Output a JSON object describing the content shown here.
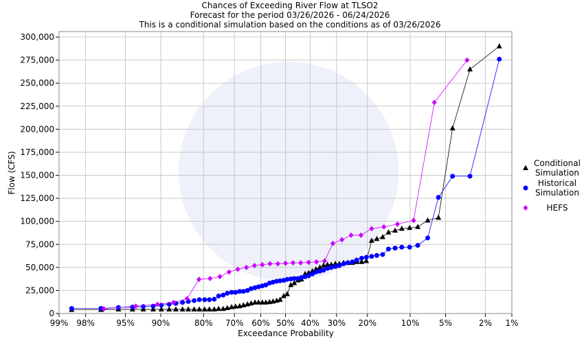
{
  "chart_data": {
    "type": "exceedance",
    "title": "Chances of Exceeding River Flow at TLSO2",
    "subtitle": "Forecast for the period 03/26/2026 - 06/24/2026",
    "subtitle2": "This is a conditional simulation based on the conditions as of 03/26/2026",
    "x_label": "Exceedance Probability",
    "y_label": "Flow (CFS)",
    "xscale": "probability",
    "grid": true,
    "legend": "right",
    "xlim": [
      99,
      1
    ],
    "ylim": [
      0,
      306000
    ],
    "xticks": [
      {
        "value": 99,
        "label": "99%"
      },
      {
        "value": 98,
        "label": "98%"
      },
      {
        "value": 95,
        "label": "95%"
      },
      {
        "value": 90,
        "label": "90%"
      },
      {
        "value": 80,
        "label": "80%"
      },
      {
        "value": 70,
        "label": "70%"
      },
      {
        "value": 60,
        "label": "60%"
      },
      {
        "value": 50,
        "label": "50%"
      },
      {
        "value": 40,
        "label": "40%"
      },
      {
        "value": 30,
        "label": "30%"
      },
      {
        "value": 20,
        "label": "20%"
      },
      {
        "value": 10,
        "label": "10%"
      },
      {
        "value": 5,
        "label": "5%"
      },
      {
        "value": 2,
        "label": "2%"
      },
      {
        "value": 1,
        "label": "1%"
      }
    ],
    "yticks": [
      0,
      {
        "value": 25000,
        "label": "25,000"
      },
      {
        "value": 50000,
        "label": "50,000"
      },
      {
        "value": 75000,
        "label": "75,000"
      },
      {
        "value": 100000,
        "label": "100,000"
      },
      {
        "value": 125000,
        "label": "125,000"
      },
      {
        "value": 150000,
        "label": "150,000"
      },
      {
        "value": 175000,
        "label": "175,000"
      },
      {
        "value": 200000,
        "label": "200,000"
      },
      {
        "value": 225000,
        "label": "225,000"
      },
      {
        "value": 250000,
        "label": "250,000"
      },
      {
        "value": 275000,
        "label": "275,000"
      },
      {
        "value": 300000,
        "label": "300,000"
      }
    ],
    "series": [
      {
        "name": "Conditional Simulation",
        "color": "#000000",
        "marker": "triangle",
        "x": [
          98.6,
          97.1,
          95.7,
          94.2,
          92.8,
          91.3,
          89.9,
          88.4,
          87.0,
          85.5,
          84.1,
          82.6,
          81.2,
          79.7,
          78.3,
          76.8,
          75.4,
          73.9,
          72.5,
          71.0,
          69.6,
          68.1,
          66.7,
          65.2,
          63.8,
          62.3,
          60.9,
          59.4,
          58.0,
          56.5,
          55.1,
          53.6,
          52.2,
          50.7,
          49.3,
          47.8,
          46.4,
          44.9,
          43.5,
          42.0,
          40.6,
          39.1,
          37.7,
          36.2,
          34.8,
          33.3,
          31.9,
          30.4,
          29.0,
          27.5,
          26.1,
          24.6,
          23.2,
          21.7,
          20.3,
          18.8,
          17.4,
          15.9,
          14.5,
          13.0,
          11.6,
          10.1,
          8.7,
          7.2,
          5.8,
          4.3,
          2.9,
          1.4
        ],
        "values": [
          4000,
          4000,
          4500,
          4500,
          4500,
          4500,
          4500,
          4500,
          4500,
          4500,
          4500,
          4500,
          4500,
          4500,
          4500,
          4500,
          5000,
          5000,
          6000,
          7000,
          7500,
          8000,
          9000,
          10000,
          11000,
          12000,
          12000,
          12000,
          12000,
          12500,
          13000,
          14000,
          15000,
          19000,
          21000,
          31000,
          33000,
          36000,
          37000,
          43000,
          44000,
          46000,
          48000,
          50000,
          52000,
          53000,
          53000,
          54000,
          54000,
          55000,
          55000,
          55000,
          56000,
          56000,
          57000,
          79000,
          81000,
          83000,
          88000,
          90000,
          92000,
          93000,
          94000,
          101000,
          104000,
          201000,
          265000,
          290000
        ]
      },
      {
        "name": "Historical Simulation",
        "color": "#0000ff",
        "marker": "circle",
        "x": [
          98.6,
          97.1,
          95.7,
          94.2,
          92.8,
          91.3,
          89.9,
          88.4,
          87.0,
          85.5,
          84.1,
          82.6,
          81.2,
          79.7,
          78.3,
          76.8,
          75.4,
          73.9,
          72.5,
          71.0,
          69.6,
          68.1,
          66.7,
          65.2,
          63.8,
          62.3,
          60.9,
          59.4,
          58.0,
          56.5,
          55.1,
          53.6,
          52.2,
          50.7,
          49.3,
          47.8,
          46.4,
          44.9,
          43.5,
          42.0,
          40.6,
          39.1,
          37.7,
          36.2,
          34.8,
          33.3,
          31.9,
          30.4,
          29.0,
          27.5,
          26.1,
          24.6,
          23.2,
          21.7,
          20.3,
          18.8,
          17.4,
          15.9,
          14.5,
          13.0,
          11.6,
          10.1,
          8.7,
          7.2,
          5.8,
          4.3,
          2.9,
          1.4
        ],
        "values": [
          5500,
          5500,
          6500,
          7000,
          7500,
          8000,
          9000,
          10000,
          11000,
          12000,
          13000,
          14000,
          15000,
          15000,
          15000,
          15500,
          19000,
          20000,
          22000,
          23000,
          23000,
          24000,
          24000,
          25000,
          27000,
          28000,
          29000,
          30000,
          31000,
          33000,
          34000,
          35000,
          35500,
          36000,
          37000,
          37500,
          38000,
          38000,
          39000,
          40000,
          41000,
          43000,
          45000,
          46000,
          47000,
          49000,
          50000,
          51000,
          52000,
          54000,
          55000,
          56000,
          58000,
          60000,
          61000,
          62000,
          63000,
          64000,
          70000,
          71000,
          72000,
          72000,
          74000,
          82000,
          126000,
          149000,
          149000,
          276000
        ]
      },
      {
        "name": "HEFS",
        "color": "#cc00ff",
        "marker": "diamond",
        "x": [
          96.9,
          93.8,
          90.6,
          87.5,
          84.4,
          81.3,
          78.1,
          75.0,
          71.9,
          68.8,
          65.6,
          62.5,
          59.4,
          56.3,
          53.1,
          50.0,
          46.9,
          43.8,
          40.6,
          37.5,
          34.4,
          31.3,
          28.1,
          25.0,
          21.9,
          18.8,
          15.6,
          12.5,
          9.4,
          6.3,
          3.1
        ],
        "values": [
          5000,
          8000,
          10000,
          12000,
          16000,
          37000,
          38000,
          40000,
          45000,
          48000,
          50000,
          52000,
          53000,
          54000,
          54000,
          54500,
          55000,
          55000,
          55500,
          56000,
          57000,
          76000,
          80000,
          85000,
          85000,
          92000,
          94000,
          97000,
          101000,
          229000,
          275000
        ]
      }
    ]
  }
}
